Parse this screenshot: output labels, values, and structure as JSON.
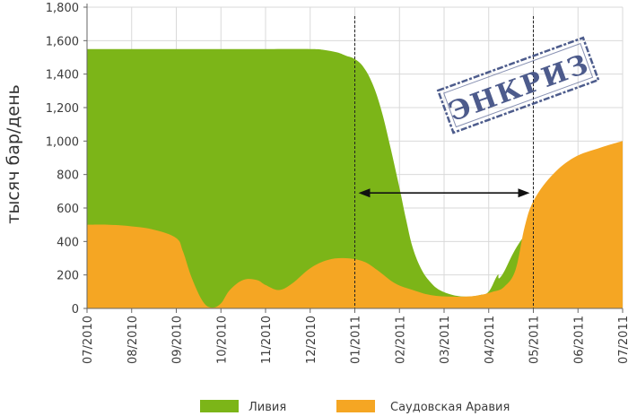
{
  "chart_data": {
    "type": "area",
    "title": "",
    "xlabel": "",
    "ylabel": "тысяч бар/день",
    "categories": [
      "07/2010",
      "08/2010",
      "09/2010",
      "10/2010",
      "11/2010",
      "12/2010",
      "01/2011",
      "02/2011",
      "03/2011",
      "04/2011",
      "05/2011",
      "06/2011",
      "07/2011"
    ],
    "ylim": [
      0,
      1800
    ],
    "yticks": [
      "0",
      "200",
      "400",
      "600",
      "800",
      "1,000",
      "1,200",
      "1,400",
      "1,600",
      "1,800"
    ],
    "ytick_values": [
      0,
      200,
      400,
      600,
      800,
      1000,
      1200,
      1400,
      1600,
      1800
    ],
    "grid": true,
    "legend_position": "bottom",
    "series": [
      {
        "name": "Ливия",
        "color": "#7cb518",
        "points": [
          [
            0,
            1550
          ],
          [
            0.5,
            1550
          ],
          [
            1,
            1550
          ],
          [
            2,
            1550
          ],
          [
            3,
            1550
          ],
          [
            4,
            1550
          ],
          [
            5,
            1550
          ],
          [
            5.3,
            1545
          ],
          [
            5.6,
            1530
          ],
          [
            5.8,
            1510
          ],
          [
            6,
            1490
          ],
          [
            6.2,
            1440
          ],
          [
            6.4,
            1340
          ],
          [
            6.6,
            1180
          ],
          [
            6.8,
            960
          ],
          [
            7,
            720
          ],
          [
            7.15,
            530
          ],
          [
            7.3,
            360
          ],
          [
            7.5,
            230
          ],
          [
            7.7,
            155
          ],
          [
            7.9,
            110
          ],
          [
            8.2,
            80
          ],
          [
            8.5,
            70
          ],
          [
            8.8,
            80
          ],
          [
            9,
            100
          ],
          [
            9.2,
            200
          ],
          [
            9.3,
            200
          ],
          [
            10,
            500
          ],
          [
            12,
            1000
          ]
        ]
      },
      {
        "name": "Саудовская Аравия",
        "color": "#f5a623",
        "points": [
          [
            0,
            500
          ],
          [
            0.5,
            500
          ],
          [
            1,
            490
          ],
          [
            1.5,
            470
          ],
          [
            2,
            420
          ],
          [
            2.15,
            340
          ],
          [
            2.35,
            180
          ],
          [
            2.6,
            40
          ],
          [
            2.8,
            5
          ],
          [
            3,
            30
          ],
          [
            3.2,
            110
          ],
          [
            3.5,
            170
          ],
          [
            3.8,
            170
          ],
          [
            4,
            140
          ],
          [
            4.3,
            110
          ],
          [
            4.6,
            150
          ],
          [
            5,
            240
          ],
          [
            5.4,
            290
          ],
          [
            5.8,
            300
          ],
          [
            6.2,
            280
          ],
          [
            6.5,
            230
          ],
          [
            6.9,
            150
          ],
          [
            7.3,
            110
          ],
          [
            7.7,
            80
          ],
          [
            8.2,
            70
          ],
          [
            8.7,
            75
          ],
          [
            9.1,
            100
          ],
          [
            9.35,
            130
          ],
          [
            9.6,
            230
          ],
          [
            9.8,
            480
          ],
          [
            10,
            640
          ],
          [
            10.4,
            790
          ],
          [
            10.9,
            900
          ],
          [
            11.5,
            960
          ],
          [
            12,
            1000
          ]
        ]
      }
    ],
    "markers": {
      "vertical_lines_at": [
        "01/2011",
        "05/2011"
      ],
      "double_arrow_between": [
        "01/2011",
        "05/2011"
      ],
      "arrow_level": 690
    },
    "stamp": "ЭНКРИЗ",
    "legend": [
      {
        "label": "Ливия",
        "color": "#7cb518"
      },
      {
        "label": "Саудовская Аравия",
        "color": "#f5a623"
      }
    ]
  }
}
